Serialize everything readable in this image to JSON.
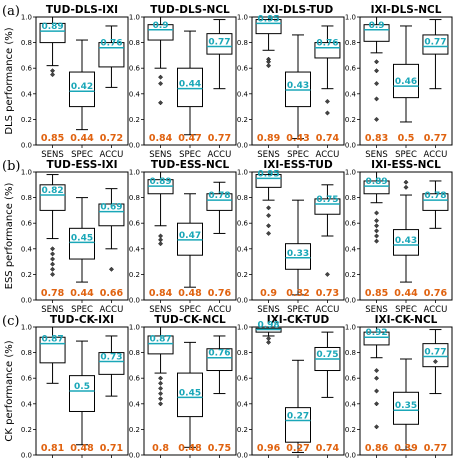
{
  "colors": {
    "median": "#1aa7b8",
    "mean_text": "#e0620f",
    "box": "#000000"
  },
  "row_labels": [
    "(a)",
    "(b)",
    "(c)"
  ],
  "y_labels": [
    "DLS performance (%)",
    "ESS performance (%)",
    "CK performance (%)"
  ],
  "chart_data": [
    {
      "type": "box",
      "title": "TUD-DLS-IXI",
      "categories": [
        "SENS",
        "SPEC",
        "ACCU"
      ],
      "ylim": [
        0,
        1
      ],
      "yticks": [
        "0.0",
        "0.2",
        "0.4",
        "0.6",
        "0.8",
        "1.0"
      ],
      "median_labels": [
        "0.89",
        "0.42",
        "0.76"
      ],
      "mean_labels": [
        "0.85",
        "0.44",
        "0.72"
      ],
      "boxes": [
        {
          "wlo": 0.62,
          "q1": 0.8,
          "med": 0.89,
          "q3": 0.95,
          "whi": 1.0,
          "out": [
            0.55,
            0.58
          ]
        },
        {
          "wlo": 0.12,
          "q1": 0.3,
          "med": 0.42,
          "q3": 0.57,
          "whi": 0.82,
          "out": []
        },
        {
          "wlo": 0.45,
          "q1": 0.61,
          "med": 0.76,
          "q3": 0.8,
          "whi": 0.93,
          "out": []
        }
      ]
    },
    {
      "type": "box",
      "title": "TUD-DLS-NCL",
      "categories": [
        "SENS",
        "SPEC",
        "ACCU"
      ],
      "ylim": [
        0,
        1
      ],
      "yticks": [
        "0.0",
        "0.2",
        "0.4",
        "0.6",
        "0.8",
        "1.0"
      ],
      "median_labels": [
        "0.9",
        "0.44",
        "0.77"
      ],
      "mean_labels": [
        "0.84",
        "0.47",
        "0.77"
      ],
      "boxes": [
        {
          "wlo": 0.6,
          "q1": 0.82,
          "med": 0.9,
          "q3": 0.94,
          "whi": 1.0,
          "out": [
            0.48,
            0.53,
            0.33
          ]
        },
        {
          "wlo": 0.08,
          "q1": 0.3,
          "med": 0.44,
          "q3": 0.6,
          "whi": 0.89,
          "out": []
        },
        {
          "wlo": 0.44,
          "q1": 0.71,
          "med": 0.77,
          "q3": 0.87,
          "whi": 0.98,
          "out": []
        }
      ]
    },
    {
      "type": "box",
      "title": "IXI-DLS-TUD",
      "categories": [
        "SENS",
        "SPEC",
        "ACCU"
      ],
      "ylim": [
        0,
        1
      ],
      "yticks": [
        "0.0",
        "0.2",
        "0.4",
        "0.6",
        "0.8",
        "1.0"
      ],
      "median_labels": [
        "0.95",
        "0.43",
        "0.76"
      ],
      "mean_labels": [
        "0.89",
        "0.43",
        "0.74"
      ],
      "boxes": [
        {
          "wlo": 0.74,
          "q1": 0.87,
          "med": 0.95,
          "q3": 0.98,
          "whi": 1.0,
          "out": [
            0.67,
            0.65,
            0.62
          ]
        },
        {
          "wlo": 0.05,
          "q1": 0.3,
          "med": 0.43,
          "q3": 0.57,
          "whi": 0.86,
          "out": []
        },
        {
          "wlo": 0.44,
          "q1": 0.68,
          "med": 0.76,
          "q3": 0.8,
          "whi": 0.93,
          "out": [
            0.34,
            0.25
          ]
        }
      ]
    },
    {
      "type": "box",
      "title": "IXI-DLS-NCL",
      "categories": [
        "SENS",
        "SPEC",
        "ACCU"
      ],
      "ylim": [
        0,
        1
      ],
      "yticks": [
        "0.0",
        "0.2",
        "0.4",
        "0.6",
        "0.8",
        "1.0"
      ],
      "median_labels": [
        "0.9",
        "0.46",
        "0.77"
      ],
      "mean_labels": [
        "0.83",
        "0.5",
        "0.77"
      ],
      "boxes": [
        {
          "wlo": 0.72,
          "q1": 0.81,
          "med": 0.9,
          "q3": 0.94,
          "whi": 1.0,
          "out": [
            0.65,
            0.58,
            0.48,
            0.36,
            0.2
          ]
        },
        {
          "wlo": 0.18,
          "q1": 0.37,
          "med": 0.46,
          "q3": 0.63,
          "whi": 0.93,
          "out": []
        },
        {
          "wlo": 0.44,
          "q1": 0.71,
          "med": 0.77,
          "q3": 0.86,
          "whi": 0.98,
          "out": []
        }
      ]
    },
    {
      "type": "box",
      "title": "TUD-ESS-IXI",
      "categories": [
        "SENS",
        "SPEC",
        "ACCU"
      ],
      "ylim": [
        0,
        1
      ],
      "yticks": [
        "0.0",
        "0.2",
        "0.4",
        "0.6",
        "0.8",
        "1.0"
      ],
      "median_labels": [
        "0.82",
        "0.45",
        "0.69"
      ],
      "mean_labels": [
        "0.78",
        "0.44",
        "0.66"
      ],
      "boxes": [
        {
          "wlo": 0.48,
          "q1": 0.7,
          "med": 0.82,
          "q3": 0.9,
          "whi": 0.98,
          "out": [
            0.4,
            0.36,
            0.32,
            0.28,
            0.24,
            0.2
          ]
        },
        {
          "wlo": 0.14,
          "q1": 0.32,
          "med": 0.45,
          "q3": 0.56,
          "whi": 0.8,
          "out": []
        },
        {
          "wlo": 0.4,
          "q1": 0.58,
          "med": 0.69,
          "q3": 0.75,
          "whi": 0.87,
          "out": [
            0.24
          ]
        }
      ]
    },
    {
      "type": "box",
      "title": "TUD-ESS-NCL",
      "categories": [
        "SENS",
        "SPEC",
        "ACCU"
      ],
      "ylim": [
        0,
        1
      ],
      "yticks": [
        "0.0",
        "0.2",
        "0.4",
        "0.6",
        "0.8",
        "1.0"
      ],
      "median_labels": [
        "0.89",
        "0.47",
        "0.78"
      ],
      "mean_labels": [
        "0.84",
        "0.48",
        "0.76"
      ],
      "boxes": [
        {
          "wlo": 0.58,
          "q1": 0.83,
          "med": 0.89,
          "q3": 0.94,
          "whi": 1.0,
          "out": [
            0.5,
            0.47,
            0.44
          ]
        },
        {
          "wlo": 0.1,
          "q1": 0.35,
          "med": 0.47,
          "q3": 0.6,
          "whi": 0.83,
          "out": []
        },
        {
          "wlo": 0.52,
          "q1": 0.7,
          "med": 0.78,
          "q3": 0.83,
          "whi": 0.92,
          "out": []
        }
      ]
    },
    {
      "type": "box",
      "title": "IXI-ESS-TUD",
      "categories": [
        "SENS",
        "SPEC",
        "ACCU"
      ],
      "ylim": [
        0,
        1
      ],
      "yticks": [
        "0.0",
        "0.2",
        "0.4",
        "0.6",
        "0.8",
        "1.0"
      ],
      "median_labels": [
        "0.95",
        "0.33",
        "0.75"
      ],
      "mean_labels": [
        "0.9",
        "0.32",
        "0.73"
      ],
      "boxes": [
        {
          "wlo": 0.78,
          "q1": 0.88,
          "med": 0.95,
          "q3": 0.98,
          "whi": 1.0,
          "out": [
            0.72,
            0.66,
            0.58,
            0.52
          ]
        },
        {
          "wlo": 0.04,
          "q1": 0.24,
          "med": 0.33,
          "q3": 0.44,
          "whi": 0.78,
          "out": []
        },
        {
          "wlo": 0.5,
          "q1": 0.67,
          "med": 0.75,
          "q3": 0.79,
          "whi": 0.9,
          "out": [
            0.2
          ]
        }
      ]
    },
    {
      "type": "box",
      "title": "IXI-ESS-NCL",
      "categories": [
        "SENS",
        "SPEC",
        "ACCU"
      ],
      "ylim": [
        0,
        1
      ],
      "yticks": [
        "0.0",
        "0.2",
        "0.4",
        "0.6",
        "0.8",
        "1.0"
      ],
      "median_labels": [
        "0.89",
        "0.43",
        "0.78"
      ],
      "mean_labels": [
        "0.85",
        "0.44",
        "0.76"
      ],
      "boxes": [
        {
          "wlo": 0.76,
          "q1": 0.83,
          "med": 0.89,
          "q3": 0.93,
          "whi": 1.0,
          "out": [
            0.68,
            0.62,
            0.58,
            0.54,
            0.5,
            0.46
          ]
        },
        {
          "wlo": 0.14,
          "q1": 0.35,
          "med": 0.43,
          "q3": 0.55,
          "whi": 0.82,
          "out": [
            0.88,
            0.92
          ]
        },
        {
          "wlo": 0.56,
          "q1": 0.7,
          "med": 0.78,
          "q3": 0.83,
          "whi": 0.93,
          "out": []
        }
      ]
    },
    {
      "type": "box",
      "title": "TUD-CK-IXI",
      "categories": [
        "SENS",
        "SPEC",
        "ACCU"
      ],
      "ylim": [
        0,
        1
      ],
      "yticks": [
        "0.0",
        "0.2",
        "0.4",
        "0.6",
        "0.8",
        "1.0"
      ],
      "median_labels": [
        "0.87",
        "0.5",
        "0.73"
      ],
      "mean_labels": [
        "0.81",
        "0.48",
        "0.71"
      ],
      "boxes": [
        {
          "wlo": 0.56,
          "q1": 0.72,
          "med": 0.87,
          "q3": 0.92,
          "whi": 1.0,
          "out": []
        },
        {
          "wlo": 0.08,
          "q1": 0.34,
          "med": 0.5,
          "q3": 0.62,
          "whi": 0.89,
          "out": []
        },
        {
          "wlo": 0.46,
          "q1": 0.63,
          "med": 0.73,
          "q3": 0.8,
          "whi": 0.93,
          "out": []
        }
      ]
    },
    {
      "type": "box",
      "title": "TUD-CK-NCL",
      "categories": [
        "SENS",
        "SPEC",
        "ACCU"
      ],
      "ylim": [
        0,
        1
      ],
      "yticks": [
        "0.0",
        "0.2",
        "0.4",
        "0.6",
        "0.8",
        "1.0"
      ],
      "median_labels": [
        "0.87",
        "0.45",
        "0.76"
      ],
      "mean_labels": [
        "0.8",
        "0.48",
        "0.75"
      ],
      "boxes": [
        {
          "wlo": 0.64,
          "q1": 0.79,
          "med": 0.87,
          "q3": 0.93,
          "whi": 1.0,
          "out": [
            0.6,
            0.56,
            0.52,
            0.48,
            0.44,
            0.4
          ]
        },
        {
          "wlo": 0.06,
          "q1": 0.3,
          "med": 0.45,
          "q3": 0.64,
          "whi": 0.88,
          "out": []
        },
        {
          "wlo": 0.48,
          "q1": 0.66,
          "med": 0.76,
          "q3": 0.83,
          "whi": 0.93,
          "out": []
        }
      ]
    },
    {
      "type": "box",
      "title": "IXI-CK-TUD",
      "categories": [
        "SENS",
        "SPEC",
        "ACCU"
      ],
      "ylim": [
        0,
        1
      ],
      "yticks": [
        "0.0",
        "0.2",
        "0.4",
        "0.6",
        "0.8",
        "1.0"
      ],
      "median_labels": [
        "0.98",
        "0.27",
        "0.75"
      ],
      "mean_labels": [
        "0.96",
        "0.27",
        "0.74"
      ],
      "boxes": [
        {
          "wlo": 0.93,
          "q1": 0.96,
          "med": 0.98,
          "q3": 0.99,
          "whi": 1.0,
          "out": [
            0.91,
            0.88
          ]
        },
        {
          "wlo": 0.02,
          "q1": 0.1,
          "med": 0.27,
          "q3": 0.37,
          "whi": 0.74,
          "out": []
        },
        {
          "wlo": 0.45,
          "q1": 0.66,
          "med": 0.75,
          "q3": 0.84,
          "whi": 0.96,
          "out": []
        }
      ]
    },
    {
      "type": "box",
      "title": "IXI-CK-NCL",
      "categories": [
        "SENS",
        "SPEC",
        "ACCU"
      ],
      "ylim": [
        0,
        1
      ],
      "yticks": [
        "0.0",
        "0.2",
        "0.4",
        "0.6",
        "0.8",
        "1.0"
      ],
      "median_labels": [
        "0.92",
        "0.35",
        "0.77"
      ],
      "mean_labels": [
        "0.86",
        "0.39",
        "0.77"
      ],
      "boxes": [
        {
          "wlo": 0.76,
          "q1": 0.86,
          "med": 0.92,
          "q3": 0.96,
          "whi": 1.0,
          "out": [
            0.66,
            0.6,
            0.5,
            0.4,
            0.22
          ]
        },
        {
          "wlo": 0.04,
          "q1": 0.24,
          "med": 0.35,
          "q3": 0.49,
          "whi": 0.75,
          "out": []
        },
        {
          "wlo": 0.48,
          "q1": 0.69,
          "med": 0.77,
          "q3": 0.87,
          "whi": 0.98,
          "out": [
            0.73
          ]
        }
      ]
    }
  ]
}
